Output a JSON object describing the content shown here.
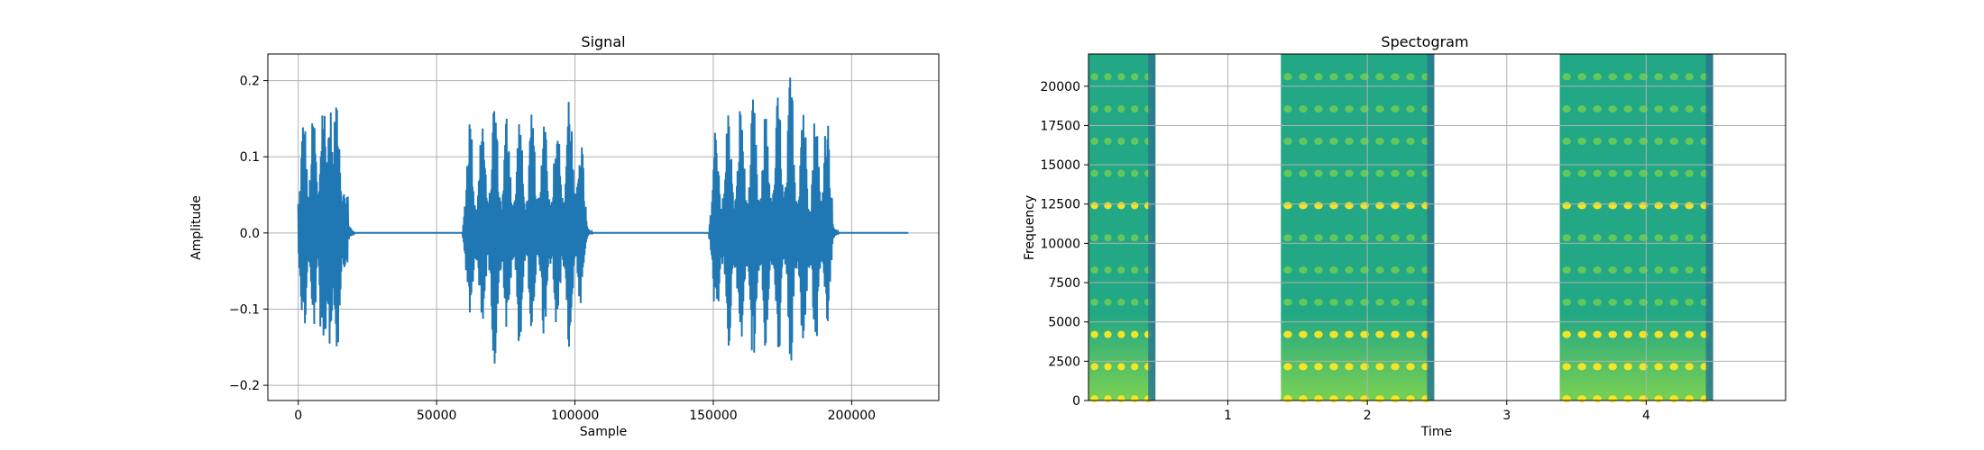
{
  "chart_data": [
    {
      "type": "line",
      "title": "Signal",
      "xlabel": "Sample",
      "ylabel": "Amplitude",
      "xlim": [
        -11000,
        231500
      ],
      "ylim": [
        -0.22,
        0.235
      ],
      "xticks": [
        0,
        50000,
        100000,
        150000,
        200000
      ],
      "xtick_labels": [
        "0",
        "50000",
        "100000",
        "150000",
        "200000"
      ],
      "yticks": [
        -0.2,
        -0.1,
        0.0,
        0.1,
        0.2
      ],
      "ytick_labels": [
        "−0.2",
        "−0.1",
        "0.0",
        "0.1",
        "0.2"
      ],
      "grid": true,
      "series_color": "#1f77b4",
      "total_samples": 220500,
      "bursts": [
        {
          "start": 0,
          "end": 18000,
          "peaks": [
            {
              "x": 2000,
              "max": 0.16,
              "min": -0.14
            },
            {
              "x": 5500,
              "max": 0.16,
              "min": -0.13
            },
            {
              "x": 9000,
              "max": 0.19,
              "min": -0.2
            },
            {
              "x": 11500,
              "max": 0.17,
              "min": -0.15
            },
            {
              "x": 14000,
              "max": 0.2,
              "min": -0.16
            }
          ]
        },
        {
          "start": 60000,
          "end": 104000,
          "peaks": [
            {
              "x": 62000,
              "max": 0.16,
              "min": -0.12
            },
            {
              "x": 66500,
              "max": 0.16,
              "min": -0.14
            },
            {
              "x": 71000,
              "max": 0.19,
              "min": -0.18
            },
            {
              "x": 75500,
              "max": 0.17,
              "min": -0.14
            },
            {
              "x": 80000,
              "max": 0.16,
              "min": -0.15
            },
            {
              "x": 84500,
              "max": 0.16,
              "min": -0.14
            },
            {
              "x": 89000,
              "max": 0.17,
              "min": -0.15
            },
            {
              "x": 93500,
              "max": 0.17,
              "min": -0.14
            },
            {
              "x": 98000,
              "max": 0.2,
              "min": -0.16
            },
            {
              "x": 102000,
              "max": 0.14,
              "min": -0.1
            }
          ]
        },
        {
          "start": 149000,
          "end": 193000,
          "peaks": [
            {
              "x": 151000,
              "max": 0.15,
              "min": -0.13
            },
            {
              "x": 155500,
              "max": 0.17,
              "min": -0.16
            },
            {
              "x": 160000,
              "max": 0.18,
              "min": -0.17
            },
            {
              "x": 164500,
              "max": 0.18,
              "min": -0.18
            },
            {
              "x": 169000,
              "max": 0.17,
              "min": -0.16
            },
            {
              "x": 173500,
              "max": 0.19,
              "min": -0.17
            },
            {
              "x": 178000,
              "max": 0.22,
              "min": -0.18
            },
            {
              "x": 182500,
              "max": 0.19,
              "min": -0.17
            },
            {
              "x": 187000,
              "max": 0.17,
              "min": -0.16
            },
            {
              "x": 191000,
              "max": 0.17,
              "min": -0.14
            }
          ]
        }
      ]
    },
    {
      "type": "heatmap",
      "title": "Spectogram",
      "xlabel": "Time",
      "ylabel": "Frequency",
      "xlim": [
        0,
        5.0
      ],
      "ylim": [
        0,
        22050
      ],
      "xticks": [
        1,
        2,
        3,
        4
      ],
      "xtick_labels": [
        "1",
        "2",
        "3",
        "4"
      ],
      "yticks": [
        0,
        2500,
        5000,
        7500,
        10000,
        12500,
        15000,
        17500,
        20000
      ],
      "ytick_labels": [
        "0",
        "2500",
        "5000",
        "7500",
        "10000",
        "12500",
        "15000",
        "17500",
        "20000"
      ],
      "grid": true,
      "colormap": "viridis",
      "colors": {
        "low": "#2a788e",
        "mid": "#22a884",
        "bright": "#7ad151",
        "peak": "#fde725"
      },
      "active_segments": [
        {
          "start": 0.0,
          "end": 0.48,
          "syllables": 5
        },
        {
          "start": 1.38,
          "end": 2.48,
          "syllables": 10
        },
        {
          "start": 3.38,
          "end": 4.48,
          "syllables": 10
        }
      ],
      "harmonic_spacing_hz": 2050
    }
  ]
}
